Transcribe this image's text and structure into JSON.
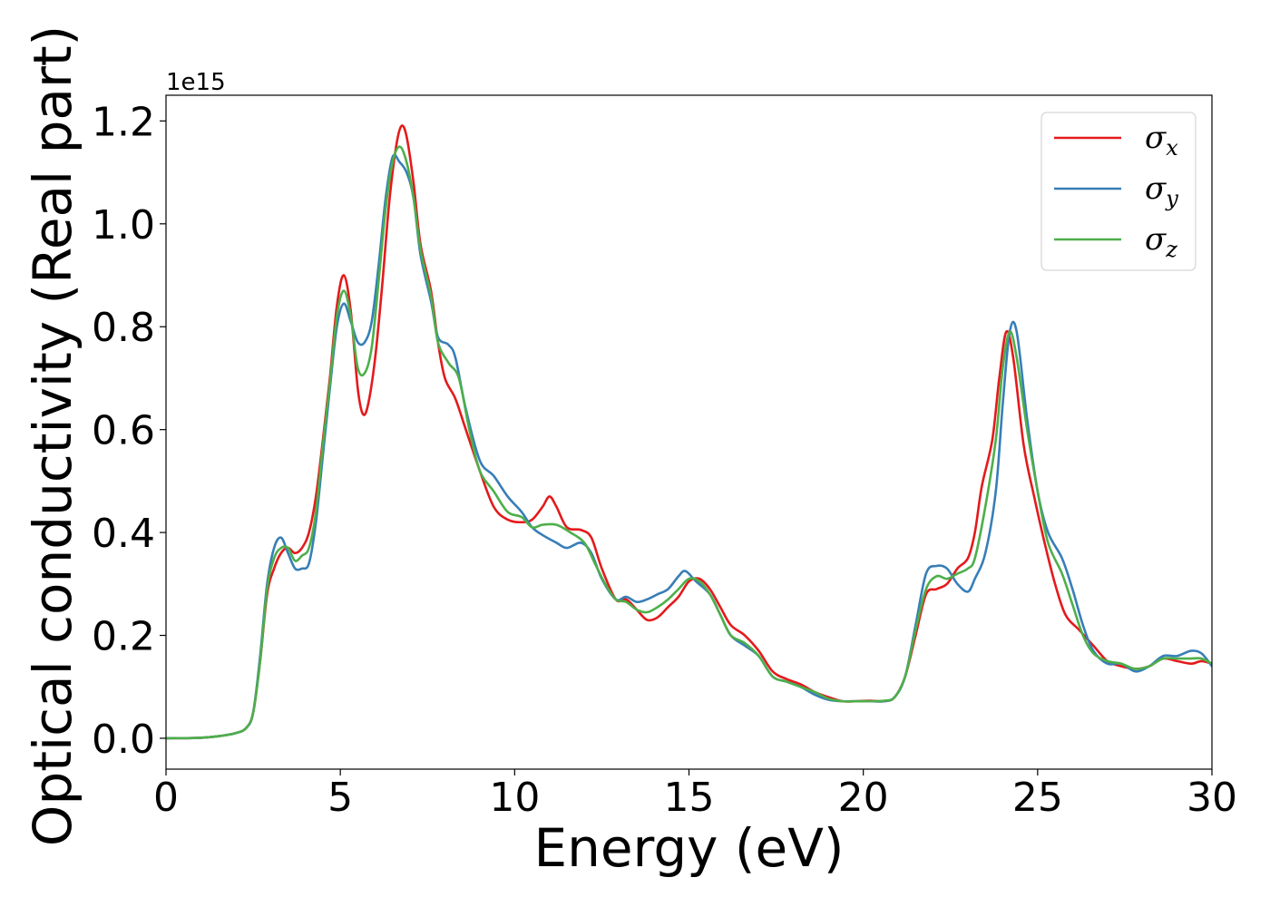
{
  "chart_data": {
    "type": "line",
    "title": "",
    "xlabel": "Energy (eV)",
    "ylabel": "Optical conductivity (Real part)",
    "y_offset_label": "1e15",
    "xlim": [
      0,
      30
    ],
    "ylim": [
      -0.06,
      1.25
    ],
    "x_ticks": [
      0,
      5,
      10,
      15,
      20,
      25,
      30
    ],
    "x_tick_labels": [
      "0",
      "5",
      "10",
      "15",
      "20",
      "25",
      "30"
    ],
    "y_ticks": [
      0.0,
      0.2,
      0.4,
      0.6,
      0.8,
      1.0,
      1.2
    ],
    "y_tick_labels": [
      "0.0",
      "0.2",
      "0.4",
      "0.6",
      "0.8",
      "1.0",
      "1.2"
    ],
    "grid": false,
    "legend_position": "top-right",
    "series": [
      {
        "name": "σx",
        "legend_base": "σ",
        "legend_sub": "x",
        "color": "#e41a1c",
        "points": [
          [
            0,
            0.0
          ],
          [
            1,
            0.001
          ],
          [
            1.5,
            0.004
          ],
          [
            2,
            0.01
          ],
          [
            2.3,
            0.02
          ],
          [
            2.5,
            0.05
          ],
          [
            2.7,
            0.15
          ],
          [
            2.9,
            0.28
          ],
          [
            3.1,
            0.33
          ],
          [
            3.3,
            0.36
          ],
          [
            3.5,
            0.37
          ],
          [
            3.7,
            0.36
          ],
          [
            3.9,
            0.37
          ],
          [
            4.1,
            0.4
          ],
          [
            4.3,
            0.47
          ],
          [
            4.5,
            0.58
          ],
          [
            4.7,
            0.7
          ],
          [
            4.9,
            0.84
          ],
          [
            5.1,
            0.9
          ],
          [
            5.3,
            0.83
          ],
          [
            5.5,
            0.68
          ],
          [
            5.65,
            0.63
          ],
          [
            5.8,
            0.65
          ],
          [
            6.0,
            0.74
          ],
          [
            6.2,
            0.88
          ],
          [
            6.4,
            1.04
          ],
          [
            6.6,
            1.15
          ],
          [
            6.75,
            1.19
          ],
          [
            6.9,
            1.17
          ],
          [
            7.1,
            1.08
          ],
          [
            7.3,
            0.96
          ],
          [
            7.6,
            0.87
          ],
          [
            7.8,
            0.77
          ],
          [
            8.0,
            0.7
          ],
          [
            8.3,
            0.66
          ],
          [
            8.6,
            0.6
          ],
          [
            9.0,
            0.52
          ],
          [
            9.4,
            0.45
          ],
          [
            9.8,
            0.425
          ],
          [
            10.2,
            0.42
          ],
          [
            10.5,
            0.425
          ],
          [
            10.8,
            0.45
          ],
          [
            11.0,
            0.47
          ],
          [
            11.2,
            0.45
          ],
          [
            11.5,
            0.41
          ],
          [
            11.9,
            0.405
          ],
          [
            12.2,
            0.39
          ],
          [
            12.5,
            0.33
          ],
          [
            12.9,
            0.27
          ],
          [
            13.2,
            0.27
          ],
          [
            13.5,
            0.25
          ],
          [
            13.8,
            0.23
          ],
          [
            14.1,
            0.235
          ],
          [
            14.4,
            0.255
          ],
          [
            14.7,
            0.275
          ],
          [
            15.0,
            0.305
          ],
          [
            15.3,
            0.31
          ],
          [
            15.6,
            0.29
          ],
          [
            15.9,
            0.255
          ],
          [
            16.2,
            0.22
          ],
          [
            16.6,
            0.2
          ],
          [
            17.0,
            0.17
          ],
          [
            17.4,
            0.13
          ],
          [
            17.8,
            0.115
          ],
          [
            18.2,
            0.105
          ],
          [
            18.6,
            0.09
          ],
          [
            19.0,
            0.08
          ],
          [
            19.4,
            0.072
          ],
          [
            19.8,
            0.072
          ],
          [
            20.2,
            0.073
          ],
          [
            20.6,
            0.072
          ],
          [
            20.9,
            0.08
          ],
          [
            21.2,
            0.12
          ],
          [
            21.5,
            0.2
          ],
          [
            21.8,
            0.28
          ],
          [
            22.1,
            0.29
          ],
          [
            22.4,
            0.3
          ],
          [
            22.7,
            0.33
          ],
          [
            23.0,
            0.35
          ],
          [
            23.2,
            0.4
          ],
          [
            23.4,
            0.49
          ],
          [
            23.7,
            0.58
          ],
          [
            23.9,
            0.7
          ],
          [
            24.1,
            0.79
          ],
          [
            24.3,
            0.74
          ],
          [
            24.6,
            0.57
          ],
          [
            24.9,
            0.47
          ],
          [
            25.2,
            0.38
          ],
          [
            25.5,
            0.3
          ],
          [
            25.8,
            0.24
          ],
          [
            26.2,
            0.21
          ],
          [
            26.6,
            0.18
          ],
          [
            27.0,
            0.15
          ],
          [
            27.4,
            0.14
          ],
          [
            27.8,
            0.135
          ],
          [
            28.2,
            0.14
          ],
          [
            28.6,
            0.155
          ],
          [
            29.0,
            0.15
          ],
          [
            29.4,
            0.145
          ],
          [
            29.7,
            0.15
          ],
          [
            30.0,
            0.145
          ]
        ]
      },
      {
        "name": "σy",
        "legend_base": "σ",
        "legend_sub": "y",
        "color": "#377eb8",
        "points": [
          [
            0,
            0.0
          ],
          [
            1,
            0.001
          ],
          [
            1.5,
            0.004
          ],
          [
            2,
            0.01
          ],
          [
            2.3,
            0.02
          ],
          [
            2.5,
            0.05
          ],
          [
            2.7,
            0.16
          ],
          [
            2.9,
            0.3
          ],
          [
            3.1,
            0.37
          ],
          [
            3.3,
            0.39
          ],
          [
            3.5,
            0.36
          ],
          [
            3.7,
            0.33
          ],
          [
            3.9,
            0.33
          ],
          [
            4.1,
            0.34
          ],
          [
            4.3,
            0.42
          ],
          [
            4.5,
            0.55
          ],
          [
            4.7,
            0.68
          ],
          [
            4.9,
            0.8
          ],
          [
            5.1,
            0.845
          ],
          [
            5.3,
            0.81
          ],
          [
            5.5,
            0.77
          ],
          [
            5.7,
            0.77
          ],
          [
            5.9,
            0.81
          ],
          [
            6.1,
            0.92
          ],
          [
            6.3,
            1.05
          ],
          [
            6.5,
            1.13
          ],
          [
            6.7,
            1.12
          ],
          [
            6.9,
            1.1
          ],
          [
            7.1,
            1.05
          ],
          [
            7.3,
            0.94
          ],
          [
            7.6,
            0.85
          ],
          [
            7.8,
            0.78
          ],
          [
            8.1,
            0.765
          ],
          [
            8.3,
            0.74
          ],
          [
            8.6,
            0.64
          ],
          [
            9.0,
            0.54
          ],
          [
            9.4,
            0.51
          ],
          [
            9.8,
            0.47
          ],
          [
            10.2,
            0.44
          ],
          [
            10.5,
            0.41
          ],
          [
            10.8,
            0.395
          ],
          [
            11.2,
            0.38
          ],
          [
            11.5,
            0.37
          ],
          [
            11.9,
            0.38
          ],
          [
            12.2,
            0.36
          ],
          [
            12.5,
            0.31
          ],
          [
            12.9,
            0.27
          ],
          [
            13.2,
            0.275
          ],
          [
            13.5,
            0.265
          ],
          [
            13.8,
            0.27
          ],
          [
            14.1,
            0.28
          ],
          [
            14.4,
            0.29
          ],
          [
            14.7,
            0.315
          ],
          [
            14.9,
            0.325
          ],
          [
            15.2,
            0.305
          ],
          [
            15.6,
            0.28
          ],
          [
            15.9,
            0.24
          ],
          [
            16.2,
            0.2
          ],
          [
            16.6,
            0.18
          ],
          [
            17.0,
            0.16
          ],
          [
            17.4,
            0.12
          ],
          [
            17.8,
            0.11
          ],
          [
            18.2,
            0.1
          ],
          [
            18.6,
            0.085
          ],
          [
            19.0,
            0.075
          ],
          [
            19.4,
            0.072
          ],
          [
            19.8,
            0.072
          ],
          [
            20.2,
            0.072
          ],
          [
            20.6,
            0.072
          ],
          [
            20.9,
            0.08
          ],
          [
            21.2,
            0.12
          ],
          [
            21.5,
            0.22
          ],
          [
            21.8,
            0.32
          ],
          [
            22.1,
            0.335
          ],
          [
            22.4,
            0.33
          ],
          [
            22.7,
            0.3
          ],
          [
            23.0,
            0.285
          ],
          [
            23.2,
            0.31
          ],
          [
            23.5,
            0.36
          ],
          [
            23.8,
            0.48
          ],
          [
            24.0,
            0.65
          ],
          [
            24.2,
            0.79
          ],
          [
            24.4,
            0.79
          ],
          [
            24.7,
            0.62
          ],
          [
            25.0,
            0.48
          ],
          [
            25.3,
            0.4
          ],
          [
            25.7,
            0.35
          ],
          [
            26.0,
            0.29
          ],
          [
            26.3,
            0.22
          ],
          [
            26.6,
            0.17
          ],
          [
            27.0,
            0.145
          ],
          [
            27.4,
            0.145
          ],
          [
            27.8,
            0.13
          ],
          [
            28.2,
            0.14
          ],
          [
            28.6,
            0.16
          ],
          [
            29.0,
            0.16
          ],
          [
            29.4,
            0.17
          ],
          [
            29.7,
            0.165
          ],
          [
            30.0,
            0.14
          ]
        ]
      },
      {
        "name": "σz",
        "legend_base": "σ",
        "legend_sub": "z",
        "color": "#4daf4a",
        "points": [
          [
            0,
            0.0
          ],
          [
            1,
            0.001
          ],
          [
            1.5,
            0.004
          ],
          [
            2,
            0.01
          ],
          [
            2.3,
            0.02
          ],
          [
            2.5,
            0.05
          ],
          [
            2.7,
            0.15
          ],
          [
            2.9,
            0.29
          ],
          [
            3.1,
            0.35
          ],
          [
            3.3,
            0.37
          ],
          [
            3.5,
            0.37
          ],
          [
            3.7,
            0.345
          ],
          [
            3.9,
            0.355
          ],
          [
            4.1,
            0.37
          ],
          [
            4.3,
            0.44
          ],
          [
            4.5,
            0.57
          ],
          [
            4.7,
            0.69
          ],
          [
            4.9,
            0.82
          ],
          [
            5.1,
            0.87
          ],
          [
            5.3,
            0.82
          ],
          [
            5.5,
            0.72
          ],
          [
            5.7,
            0.71
          ],
          [
            5.9,
            0.76
          ],
          [
            6.1,
            0.89
          ],
          [
            6.3,
            1.03
          ],
          [
            6.5,
            1.12
          ],
          [
            6.7,
            1.15
          ],
          [
            6.9,
            1.12
          ],
          [
            7.1,
            1.05
          ],
          [
            7.3,
            0.95
          ],
          [
            7.6,
            0.86
          ],
          [
            7.8,
            0.77
          ],
          [
            8.1,
            0.73
          ],
          [
            8.4,
            0.7
          ],
          [
            8.7,
            0.6
          ],
          [
            9.0,
            0.52
          ],
          [
            9.4,
            0.48
          ],
          [
            9.8,
            0.44
          ],
          [
            10.2,
            0.43
          ],
          [
            10.5,
            0.41
          ],
          [
            10.8,
            0.415
          ],
          [
            11.2,
            0.415
          ],
          [
            11.6,
            0.4
          ],
          [
            12.0,
            0.38
          ],
          [
            12.3,
            0.34
          ],
          [
            12.6,
            0.3
          ],
          [
            12.9,
            0.27
          ],
          [
            13.2,
            0.265
          ],
          [
            13.5,
            0.25
          ],
          [
            13.8,
            0.245
          ],
          [
            14.1,
            0.255
          ],
          [
            14.4,
            0.27
          ],
          [
            14.7,
            0.29
          ],
          [
            15.0,
            0.31
          ],
          [
            15.3,
            0.305
          ],
          [
            15.6,
            0.28
          ],
          [
            15.9,
            0.24
          ],
          [
            16.2,
            0.2
          ],
          [
            16.6,
            0.185
          ],
          [
            17.0,
            0.16
          ],
          [
            17.4,
            0.12
          ],
          [
            17.8,
            0.11
          ],
          [
            18.2,
            0.1
          ],
          [
            18.6,
            0.09
          ],
          [
            19.0,
            0.077
          ],
          [
            19.4,
            0.072
          ],
          [
            19.8,
            0.072
          ],
          [
            20.2,
            0.072
          ],
          [
            20.6,
            0.073
          ],
          [
            20.9,
            0.08
          ],
          [
            21.2,
            0.12
          ],
          [
            21.5,
            0.21
          ],
          [
            21.8,
            0.29
          ],
          [
            22.1,
            0.315
          ],
          [
            22.4,
            0.31
          ],
          [
            22.7,
            0.32
          ],
          [
            23.0,
            0.33
          ],
          [
            23.2,
            0.35
          ],
          [
            23.5,
            0.45
          ],
          [
            23.8,
            0.58
          ],
          [
            24.0,
            0.72
          ],
          [
            24.2,
            0.79
          ],
          [
            24.4,
            0.74
          ],
          [
            24.7,
            0.6
          ],
          [
            25.0,
            0.48
          ],
          [
            25.3,
            0.38
          ],
          [
            25.7,
            0.32
          ],
          [
            26.0,
            0.26
          ],
          [
            26.3,
            0.2
          ],
          [
            26.6,
            0.165
          ],
          [
            27.0,
            0.15
          ],
          [
            27.4,
            0.145
          ],
          [
            27.8,
            0.135
          ],
          [
            28.2,
            0.14
          ],
          [
            28.6,
            0.155
          ],
          [
            29.0,
            0.155
          ],
          [
            29.4,
            0.155
          ],
          [
            29.7,
            0.155
          ],
          [
            30.0,
            0.145
          ]
        ]
      }
    ]
  }
}
